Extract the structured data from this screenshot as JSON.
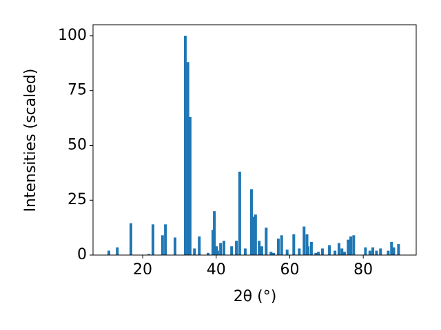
{
  "chart_data": {
    "type": "bar",
    "x_label": "2θ (°)",
    "y_label": "Intensities (scaled)",
    "color": "#1f77b4",
    "x": [
      10.8,
      13.1,
      16.8,
      21.7,
      22.8,
      25.4,
      26.2,
      28.8,
      31.6,
      32.3,
      32.9,
      34.1,
      35.4,
      37.8,
      39.1,
      39.5,
      40.1,
      40.4,
      41.2,
      42.1,
      44.2,
      45.5,
      46.4,
      47.9,
      49.6,
      50.2,
      50.7,
      51.7,
      52.4,
      53.6,
      54.9,
      55.6,
      56.9,
      57.8,
      59.3,
      61.1,
      62.6,
      63.9,
      64.7,
      65.0,
      65.9,
      67.1,
      67.8,
      68.9,
      70.8,
      72.3,
      73.4,
      74.2,
      74.9,
      75.9,
      76.6,
      77.4,
      80.6,
      81.8,
      82.6,
      83.6,
      84.7,
      86.8,
      87.7,
      88.3,
      89.6
    ],
    "values": [
      2,
      3.5,
      14.5,
      0.5,
      14,
      9,
      14,
      8,
      100,
      88,
      63,
      3,
      8.5,
      1,
      11.5,
      20,
      4,
      2,
      5.5,
      6.5,
      4,
      6.5,
      38,
      3,
      30,
      17.5,
      18.5,
      6.5,
      4,
      12.5,
      1.5,
      1,
      7.5,
      9,
      2.5,
      9.5,
      3,
      13,
      9.5,
      4,
      6,
      1,
      1.5,
      3,
      4.5,
      2,
      5.5,
      3,
      1.5,
      7,
      8.5,
      9,
      3.5,
      2,
      3.5,
      2,
      3,
      2,
      6,
      3.5,
      5
    ],
    "xlim": [
      6.5,
      94.4
    ],
    "ylim": [
      0,
      105
    ],
    "xticks": [
      20,
      40,
      60,
      80
    ],
    "yticks": [
      0,
      25,
      50,
      75,
      100
    ]
  }
}
